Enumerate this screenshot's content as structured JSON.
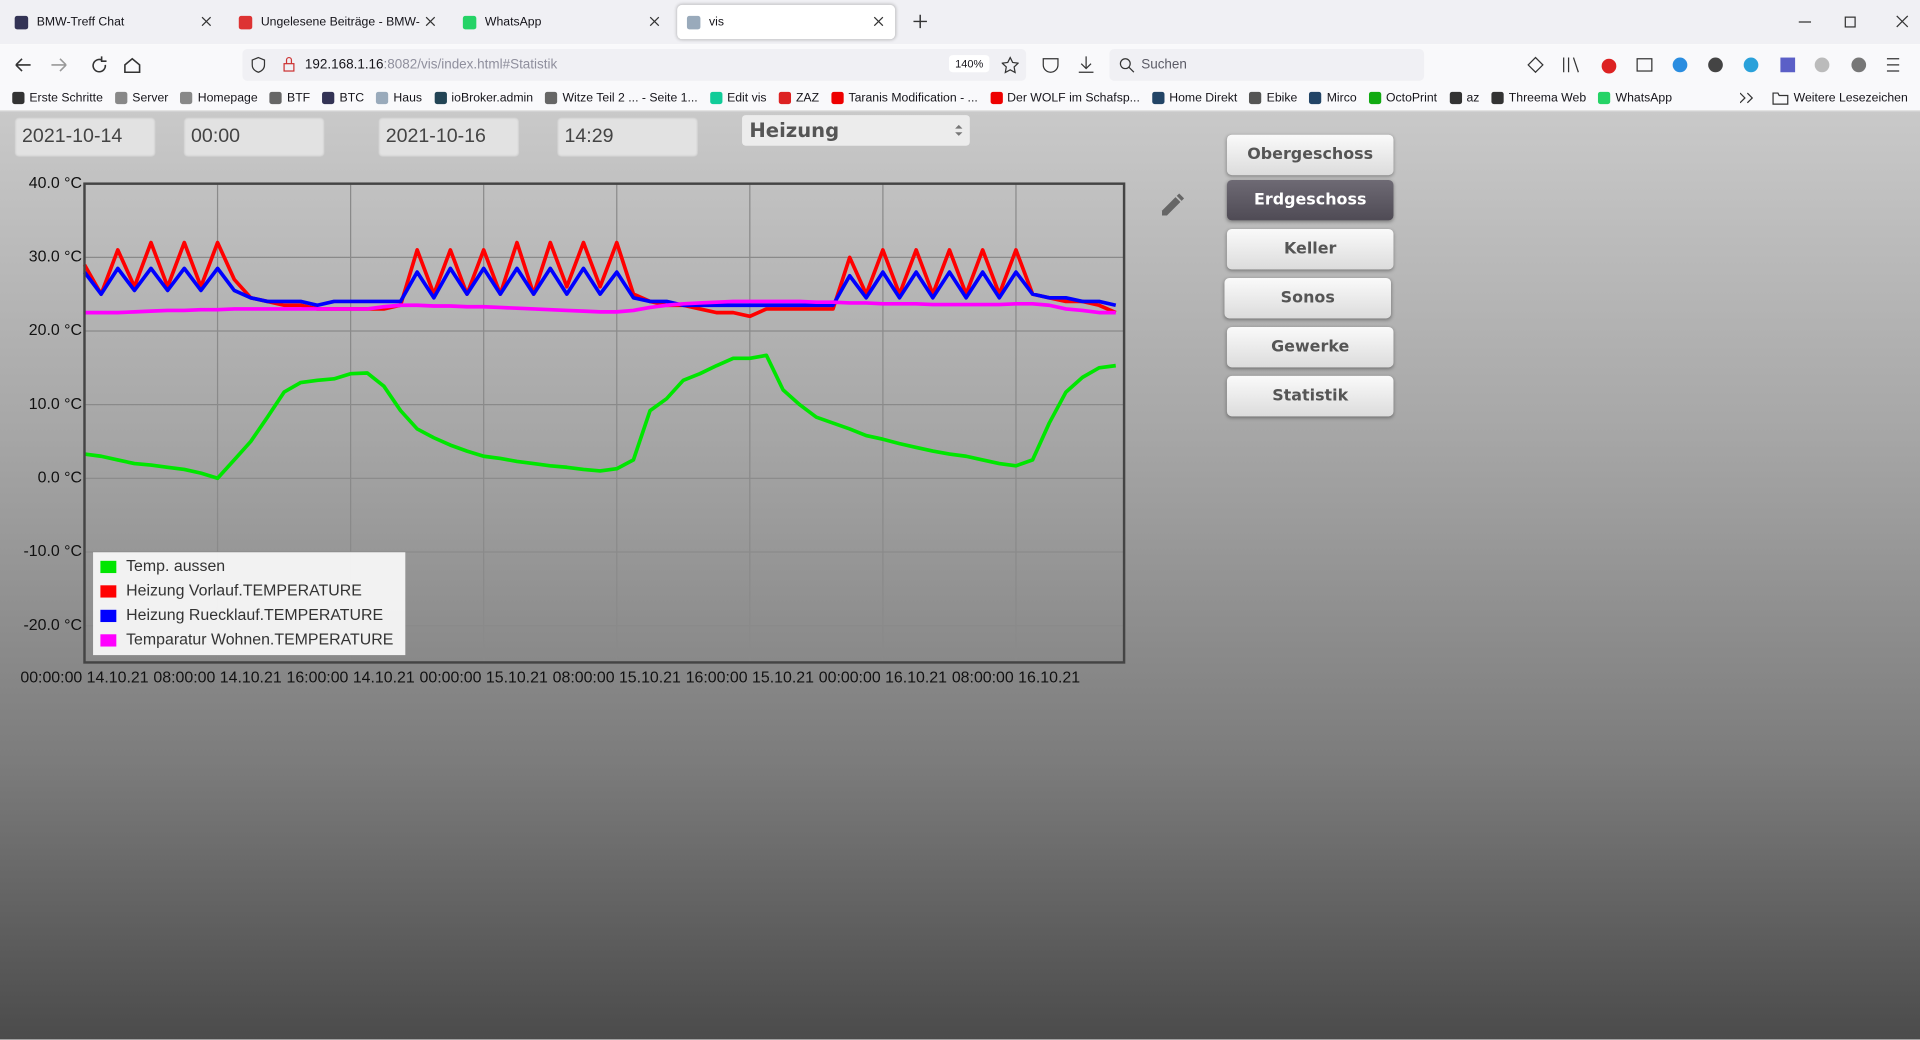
{
  "browser": {
    "tabs": [
      {
        "title": "BMW-Treff Chat"
      },
      {
        "title": "Ungelesene Beiträge - BMW-Tre"
      },
      {
        "title": "WhatsApp"
      },
      {
        "title": "vis"
      }
    ],
    "active_tab": 3,
    "address_host": "192.168.1.16",
    "address_path": ":8082/vis/index.html#Statistik",
    "zoom": "140%",
    "search": "Suchen",
    "bookmarks": [
      "Erste Schritte",
      "Server",
      "Homepage",
      "BTF",
      "BTC",
      "Haus",
      "ioBroker.admin",
      "Witze Teil 2 ... - Seite 1...",
      "Edit vis",
      "ZAZ",
      "Taranis Modification - ...",
      "Der WOLF im Schafsp...",
      "Home Direkt",
      "Ebike",
      "Mirco",
      "OctoPrint",
      "az",
      "Threema Web",
      "WhatsApp"
    ],
    "more_bookmarks": "Weitere Lesezeichen"
  },
  "controls": {
    "start_date": "2021-10-14",
    "start_time": "00:00",
    "end_date": "2021-10-16",
    "end_time": "14:29",
    "select": "Heizung"
  },
  "nav_buttons": [
    "Obergeschoss",
    "Erdgeschoss",
    "Keller",
    "Sonos",
    "Gewerke",
    "Statistik"
  ],
  "active_button": 1,
  "chart_data": {
    "type": "line",
    "x": [
      0,
      1,
      2,
      3,
      4,
      5,
      6,
      7,
      8,
      9,
      10,
      11,
      12,
      13,
      14,
      15,
      16,
      17,
      18,
      19,
      20,
      21,
      22,
      23,
      24,
      25,
      26,
      27,
      28,
      29,
      30,
      31,
      32,
      33,
      34,
      35,
      36,
      37,
      38,
      39,
      40,
      41,
      42,
      43,
      44,
      45,
      46,
      47,
      48,
      49,
      50,
      51,
      52,
      53,
      54,
      55,
      56,
      57,
      58,
      59,
      60,
      61,
      62
    ],
    "xlim": [
      0,
      62.5
    ],
    "xticks": [
      {
        "value": 0,
        "label": "00:00:00 14.10.21"
      },
      {
        "value": 8,
        "label": "08:00:00 14.10.21"
      },
      {
        "value": 16,
        "label": "16:00:00 14.10.21"
      },
      {
        "value": 24,
        "label": "00:00:00 15.10.21"
      },
      {
        "value": 32,
        "label": "08:00:00 15.10.21"
      },
      {
        "value": 40,
        "label": "16:00:00 15.10.21"
      },
      {
        "value": 48,
        "label": "00:00:00 16.10.21"
      },
      {
        "value": 56,
        "label": "08:00:00 16.10.21"
      }
    ],
    "ylim": [
      -25,
      40
    ],
    "yticks": [
      {
        "value": 40,
        "label": "40.0 °C"
      },
      {
        "value": 30,
        "label": "30.0 °C"
      },
      {
        "value": 20,
        "label": "20.0 °C"
      },
      {
        "value": 10,
        "label": "10.0 °C"
      },
      {
        "value": 0,
        "label": "0.0 °C"
      },
      {
        "value": -10,
        "label": "-10.0 °C"
      },
      {
        "value": -20,
        "label": "-20.0 °C"
      }
    ],
    "grid": true,
    "legend": "lower left",
    "series": [
      {
        "name": "Temp. aussen",
        "color": "#00e600",
        "values": [
          3.3,
          3.0,
          2.5,
          2.0,
          1.8,
          1.5,
          1.2,
          0.7,
          0,
          2.5,
          5.0,
          8.3,
          11.7,
          13,
          13.3,
          13.5,
          14.2,
          14.3,
          12.5,
          9.2,
          6.7,
          5.5,
          4.5,
          3.7,
          3,
          2.7,
          2.3,
          2,
          1.7,
          1.5,
          1.2,
          1.0,
          1.3,
          2.5,
          9.2,
          10.8,
          13.3,
          14.2,
          15.3,
          16.3,
          16.3,
          16.7,
          12,
          10,
          8.3,
          7.5,
          6.7,
          5.8,
          5.3,
          4.7,
          4.2,
          3.7,
          3.3,
          3.0,
          2.5,
          2,
          1.7,
          2.5,
          7.5,
          11.7,
          13.7,
          15,
          15.3
        ]
      },
      {
        "name": "Heizung Vorlauf.TEMPERATURE",
        "color": "#ff0000",
        "values": [
          29,
          25,
          31,
          26,
          32,
          26,
          32,
          26,
          32,
          27,
          24.5,
          24,
          23.5,
          23.5,
          23,
          23,
          23,
          23,
          23,
          23.5,
          31,
          25,
          31,
          25,
          31,
          25,
          32,
          25,
          32,
          26,
          32,
          26,
          32,
          25,
          24,
          23.5,
          23.5,
          23,
          22.5,
          22.5,
          22,
          23,
          23,
          23,
          23,
          23,
          30,
          25,
          31,
          25,
          31,
          25,
          31,
          25,
          31,
          25,
          31,
          25,
          24.5,
          24,
          24,
          23.5,
          22.5
        ]
      },
      {
        "name": "Heizung Ruecklauf.TEMPERATURE",
        "color": "#0000ff",
        "values": [
          28,
          25,
          28.5,
          25.5,
          28.5,
          25.5,
          28.5,
          25.5,
          28.5,
          25.5,
          24.5,
          24,
          24,
          24,
          23.5,
          24,
          24,
          24,
          24,
          24,
          28,
          24.5,
          28.5,
          25,
          28.5,
          25,
          28.5,
          25,
          28.5,
          25,
          28.5,
          25,
          28,
          24.5,
          24,
          24,
          23.5,
          23.5,
          23.5,
          23.5,
          23.5,
          23.5,
          23.5,
          23.5,
          23.5,
          23.5,
          27.5,
          24.5,
          28,
          24.5,
          28,
          24.5,
          28,
          24.5,
          28,
          24.5,
          28,
          25,
          24.5,
          24.5,
          24,
          24,
          23.5
        ]
      },
      {
        "name": "Temparatur Wohnen.TEMPERATURE",
        "color": "#ff00ff",
        "values": [
          22.5,
          22.5,
          22.5,
          22.6,
          22.7,
          22.8,
          22.8,
          22.9,
          22.9,
          23,
          23,
          23,
          23,
          23,
          23,
          23,
          23,
          23,
          23.3,
          23.5,
          23.5,
          23.4,
          23.4,
          23.3,
          23.3,
          23.2,
          23.1,
          23,
          22.9,
          22.8,
          22.7,
          22.6,
          22.6,
          22.8,
          23.2,
          23.5,
          23.7,
          23.8,
          23.9,
          24,
          24,
          24,
          24,
          24,
          23.9,
          23.9,
          23.8,
          23.8,
          23.7,
          23.7,
          23.7,
          23.6,
          23.6,
          23.6,
          23.6,
          23.6,
          23.7,
          23.7,
          23.5,
          23,
          22.8,
          22.5,
          22.5
        ]
      }
    ]
  }
}
